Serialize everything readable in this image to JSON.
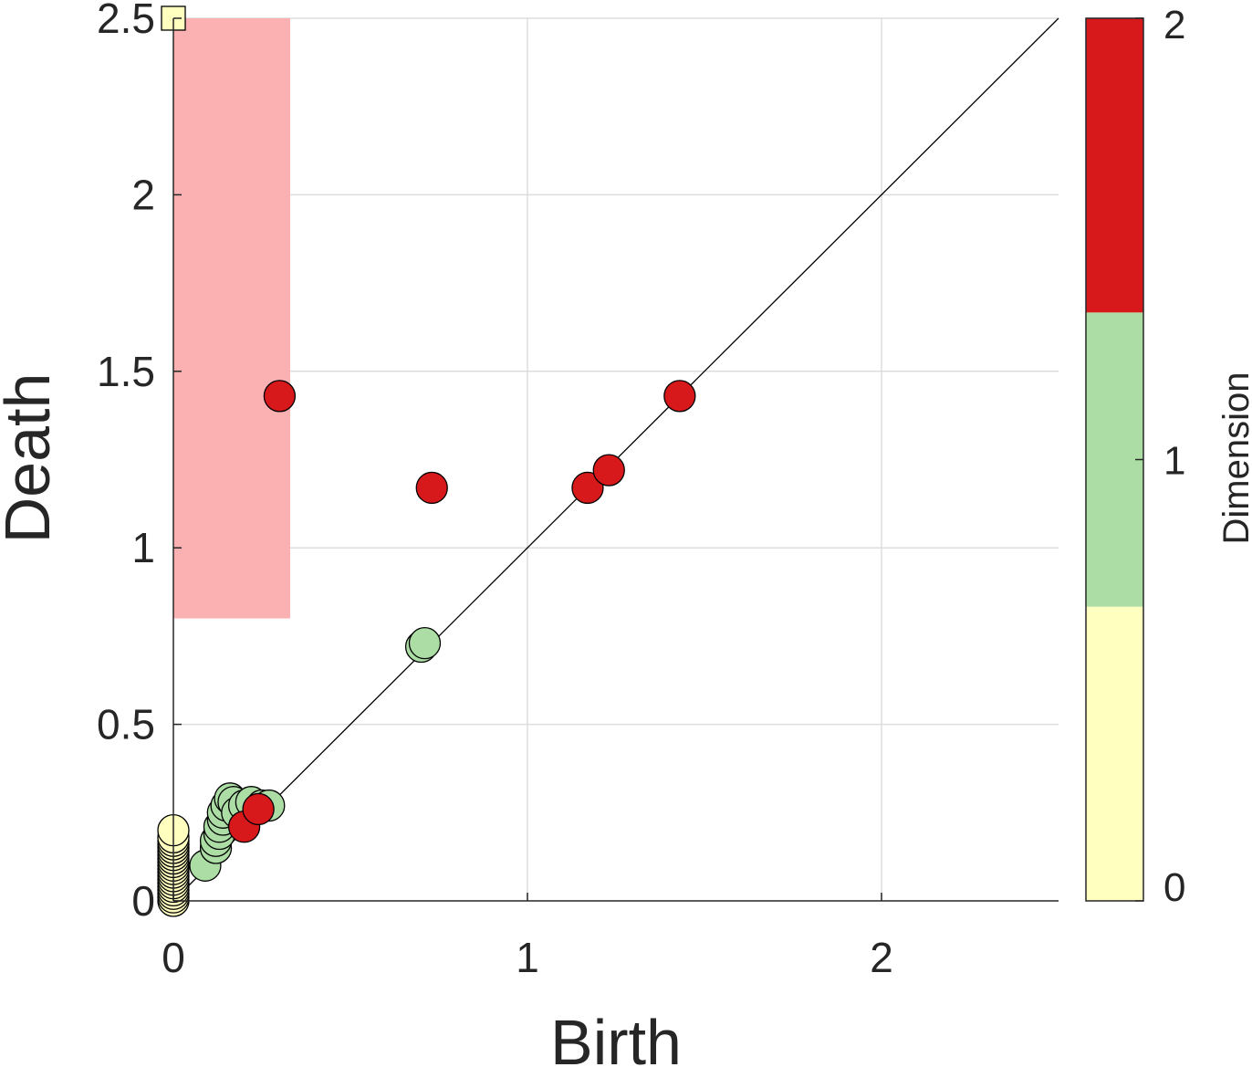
{
  "chart_data": {
    "type": "scatter",
    "title": "",
    "xlabel": "Birth",
    "ylabel": "Death",
    "xlim": [
      0,
      2.5
    ],
    "ylim": [
      0,
      2.5
    ],
    "xticks": [
      0,
      1,
      2
    ],
    "xtick_labels": [
      "0",
      "1",
      "2"
    ],
    "yticks": [
      0,
      0.5,
      1,
      1.5,
      2,
      2.5
    ],
    "ytick_labels": [
      "0",
      "0.5",
      "1",
      "1.5",
      "2",
      "2.5"
    ],
    "grid": true,
    "diagonal": true,
    "highlight_region": {
      "x": [
        0,
        0.33
      ],
      "y": [
        0.8,
        2.5
      ],
      "color": "#fbb0b2"
    },
    "colors": {
      "dim0": "#ffffc0",
      "dim1": "#abdda4",
      "dim2": "#d7191c",
      "axis": "#262626",
      "grid": "#dddddd"
    },
    "colorbar": {
      "label": "Dimension",
      "ticks": [
        0,
        1,
        2
      ],
      "tick_labels": [
        "0",
        "1",
        "2"
      ],
      "segments": [
        {
          "dimension": 0,
          "color": "#ffffc0"
        },
        {
          "dimension": 1,
          "color": "#abdda4"
        },
        {
          "dimension": 2,
          "color": "#d7191c"
        }
      ]
    },
    "series": [
      {
        "dimension": 0,
        "color": "#ffffc0",
        "points": [
          {
            "x": 0,
            "y": 0.0
          },
          {
            "x": 0,
            "y": 0.01
          },
          {
            "x": 0,
            "y": 0.02
          },
          {
            "x": 0,
            "y": 0.03
          },
          {
            "x": 0,
            "y": 0.04
          },
          {
            "x": 0,
            "y": 0.05
          },
          {
            "x": 0,
            "y": 0.06
          },
          {
            "x": 0,
            "y": 0.07
          },
          {
            "x": 0,
            "y": 0.08
          },
          {
            "x": 0,
            "y": 0.09
          },
          {
            "x": 0,
            "y": 0.1
          },
          {
            "x": 0,
            "y": 0.11
          },
          {
            "x": 0,
            "y": 0.12
          },
          {
            "x": 0,
            "y": 0.13
          },
          {
            "x": 0,
            "y": 0.14
          },
          {
            "x": 0,
            "y": 0.15
          },
          {
            "x": 0,
            "y": 0.16
          },
          {
            "x": 0,
            "y": 0.17
          },
          {
            "x": 0,
            "y": 0.18
          },
          {
            "x": 0,
            "y": 0.2
          }
        ],
        "infinite_points": [
          {
            "x": 0,
            "y": 2.5
          }
        ]
      },
      {
        "dimension": 1,
        "color": "#abdda4",
        "points": [
          {
            "x": 0.09,
            "y": 0.1
          },
          {
            "x": 0.12,
            "y": 0.15
          },
          {
            "x": 0.12,
            "y": 0.17
          },
          {
            "x": 0.13,
            "y": 0.19
          },
          {
            "x": 0.13,
            "y": 0.21
          },
          {
            "x": 0.14,
            "y": 0.23
          },
          {
            "x": 0.14,
            "y": 0.25
          },
          {
            "x": 0.15,
            "y": 0.27
          },
          {
            "x": 0.16,
            "y": 0.29
          },
          {
            "x": 0.17,
            "y": 0.28
          },
          {
            "x": 0.18,
            "y": 0.25
          },
          {
            "x": 0.2,
            "y": 0.27
          },
          {
            "x": 0.22,
            "y": 0.28
          },
          {
            "x": 0.25,
            "y": 0.27
          },
          {
            "x": 0.27,
            "y": 0.27
          },
          {
            "x": 0.7,
            "y": 0.72
          },
          {
            "x": 0.71,
            "y": 0.73
          }
        ]
      },
      {
        "dimension": 2,
        "color": "#d7191c",
        "points": [
          {
            "x": 0.2,
            "y": 0.21
          },
          {
            "x": 0.24,
            "y": 0.26
          },
          {
            "x": 0.3,
            "y": 1.43
          },
          {
            "x": 0.73,
            "y": 1.17
          },
          {
            "x": 1.17,
            "y": 1.17
          },
          {
            "x": 1.23,
            "y": 1.22
          },
          {
            "x": 1.43,
            "y": 1.43
          }
        ]
      }
    ]
  }
}
